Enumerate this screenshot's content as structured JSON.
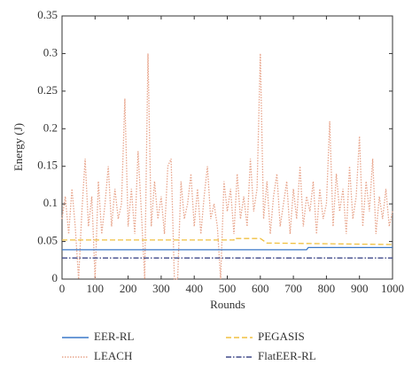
{
  "chart_data": {
    "type": "line",
    "xlabel": "Rounds",
    "ylabel": "Energy (J)",
    "xlim": [
      0,
      1000
    ],
    "xticks": [
      0,
      100,
      200,
      300,
      400,
      500,
      600,
      700,
      800,
      900,
      1000
    ],
    "ylim": [
      0,
      0.35
    ],
    "yticks": [
      0,
      0.05,
      0.1,
      0.15,
      0.2,
      0.25,
      0.3,
      0.35
    ],
    "series": [
      {
        "name": "LEACH",
        "color": "#e8a58c",
        "dash": "1.5 1.5",
        "x": [
          0,
          10,
          20,
          30,
          40,
          50,
          60,
          70,
          80,
          90,
          100,
          110,
          120,
          130,
          140,
          150,
          160,
          170,
          180,
          190,
          200,
          210,
          220,
          230,
          240,
          250,
          260,
          270,
          280,
          290,
          300,
          310,
          320,
          330,
          340,
          350,
          360,
          370,
          380,
          390,
          400,
          410,
          420,
          430,
          440,
          450,
          460,
          470,
          480,
          490,
          500,
          510,
          520,
          530,
          540,
          550,
          560,
          570,
          580,
          590,
          600,
          610,
          620,
          630,
          640,
          650,
          660,
          670,
          680,
          690,
          700,
          710,
          720,
          730,
          740,
          750,
          760,
          770,
          780,
          790,
          800,
          810,
          820,
          830,
          840,
          850,
          860,
          870,
          880,
          890,
          900,
          910,
          920,
          930,
          940,
          950,
          960,
          970,
          980,
          990,
          1000
        ],
        "values": [
          0.08,
          0.11,
          0.06,
          0.12,
          0.07,
          0,
          0.09,
          0.16,
          0.07,
          0.11,
          0,
          0.13,
          0.06,
          0.1,
          0.15,
          0.07,
          0.12,
          0.08,
          0.1,
          0.24,
          0.07,
          0.12,
          0.06,
          0.17,
          0.09,
          0,
          0.3,
          0.07,
          0.13,
          0.08,
          0.11,
          0.06,
          0.15,
          0.16,
          0,
          0,
          0.13,
          0.08,
          0.1,
          0.14,
          0.07,
          0.12,
          0.06,
          0.11,
          0.15,
          0.08,
          0.1,
          0.07,
          0,
          0.13,
          0.09,
          0.12,
          0.06,
          0.14,
          0.08,
          0.11,
          0.07,
          0.16,
          0.09,
          0.12,
          0.3,
          0.08,
          0.13,
          0.06,
          0.11,
          0.14,
          0.07,
          0.1,
          0.13,
          0.06,
          0.12,
          0.08,
          0.15,
          0.07,
          0.11,
          0.09,
          0.13,
          0.06,
          0.12,
          0.08,
          0.1,
          0.21,
          0.07,
          0.14,
          0.09,
          0.12,
          0.06,
          0.15,
          0.08,
          0.11,
          0.19,
          0.07,
          0.13,
          0.09,
          0.16,
          0.06,
          0.11,
          0.08,
          0.12,
          0.07,
          0.09
        ]
      },
      {
        "name": "PEGASIS",
        "color": "#f0c040",
        "dash": "6 3",
        "x": [
          0,
          520,
          520,
          600,
          620,
          1000
        ],
        "values": [
          0.052,
          0.052,
          0.054,
          0.054,
          0.048,
          0.046
        ]
      },
      {
        "name": "EER-RL",
        "color": "#3a78c8",
        "dash": "",
        "x": [
          0,
          740,
          745,
          1000
        ],
        "values": [
          0.039,
          0.039,
          0.042,
          0.042
        ]
      },
      {
        "name": "FlatEER-RL",
        "color": "#404a8a",
        "dash": "6 2 1.5 2",
        "x": [
          0,
          1000
        ],
        "values": [
          0.028,
          0.028
        ]
      }
    ]
  }
}
